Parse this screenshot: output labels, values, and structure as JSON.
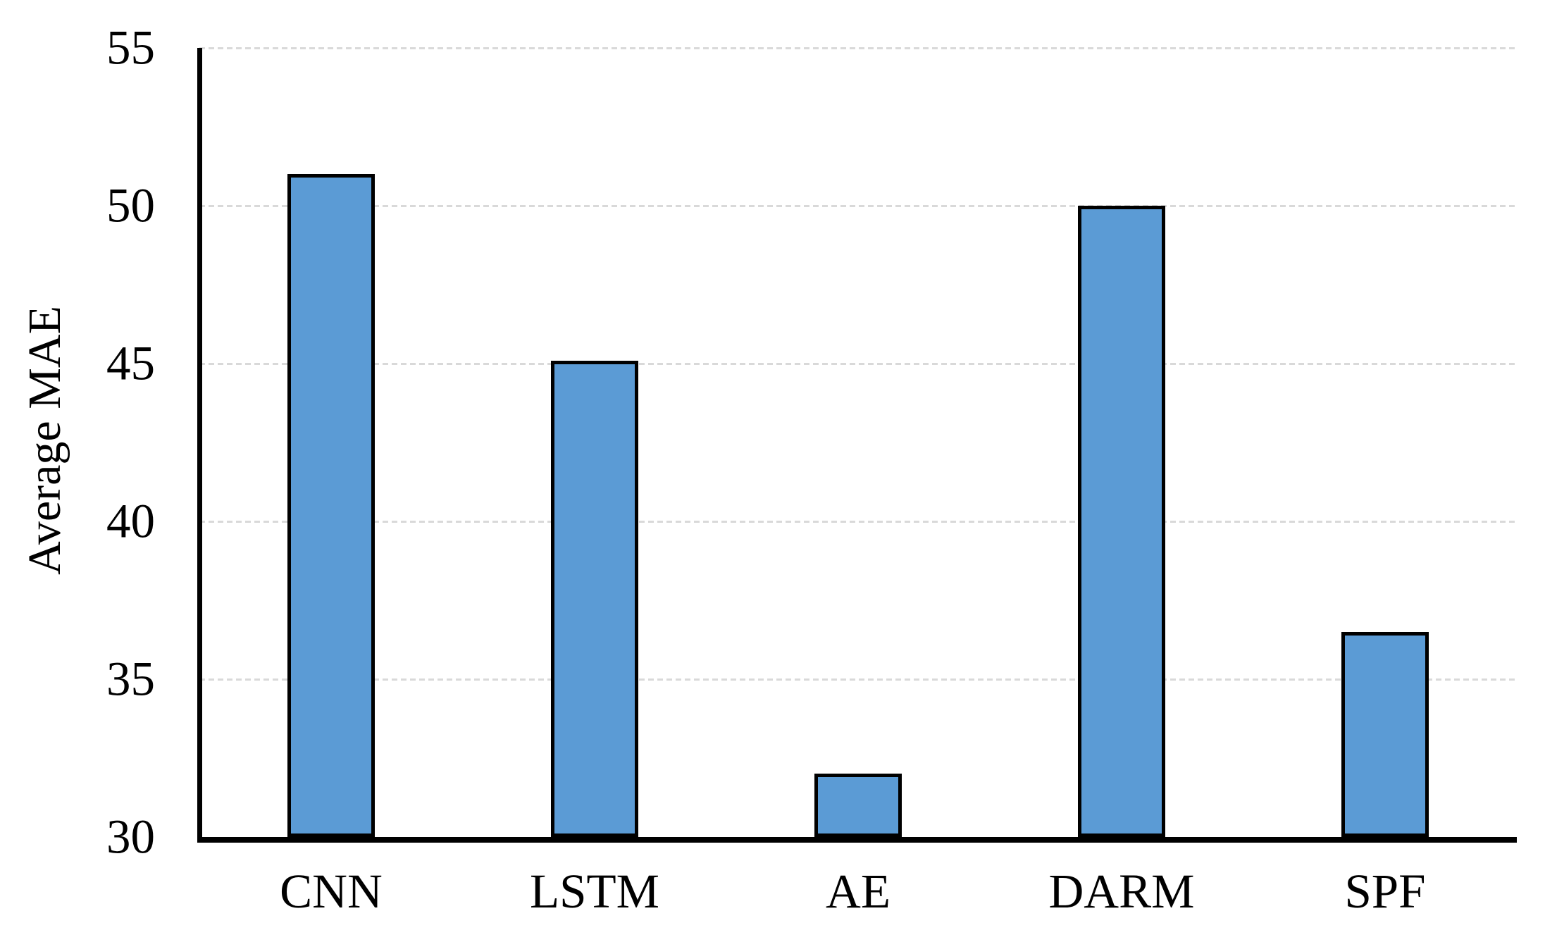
{
  "chart_data": {
    "type": "bar",
    "categories": [
      "CNN",
      "LSTM",
      "AE",
      "DARM",
      "SPF"
    ],
    "values": [
      51,
      45.1,
      32,
      50,
      36.5
    ],
    "ylabel": "Average MAE",
    "xlabel": "",
    "ylim": [
      30,
      55
    ],
    "yticks": [
      30,
      35,
      40,
      45,
      50,
      55
    ],
    "grid": "horizontal-dashed",
    "legend_position": "none",
    "colors": {
      "bar_fill": "#5B9BD5",
      "bar_border": "#000000",
      "gridline": "#D9D9D9",
      "axis": "#000000",
      "background": "#FFFFFF",
      "text": "#000000"
    }
  }
}
